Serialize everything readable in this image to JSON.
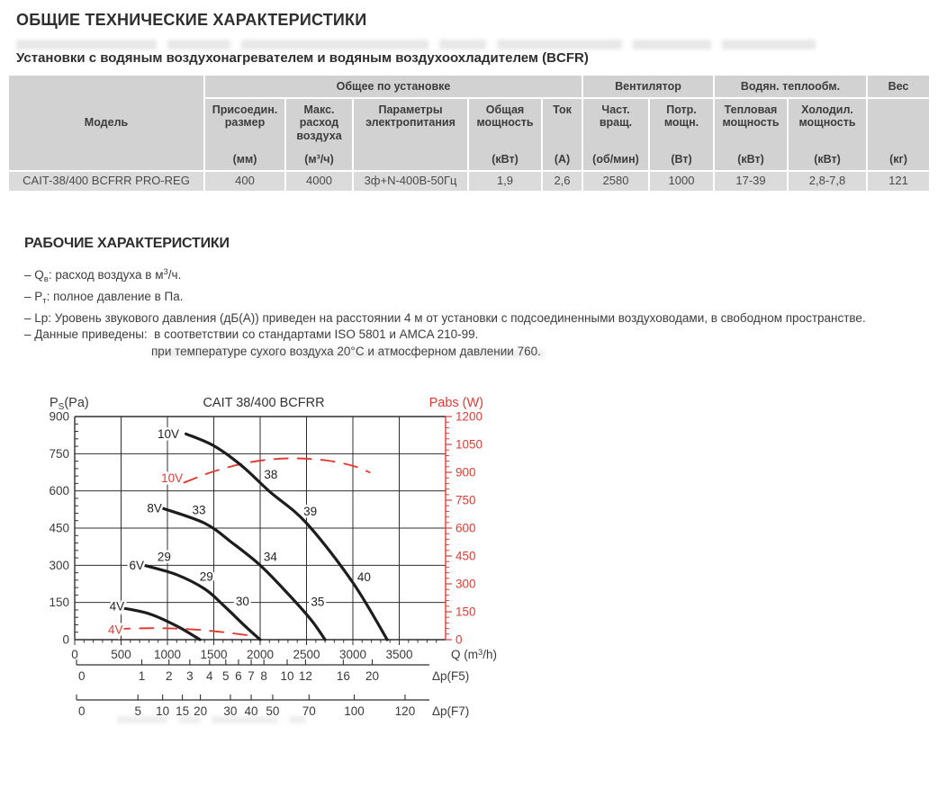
{
  "page": {
    "title": "ОБЩИЕ ТЕХНИЧЕСКИЕ ХАРАКТЕРИСТИКИ",
    "subtitle": "Установки с водяным воздухонагревателем и водяным воздухоохладителем (BCFR)",
    "section2_title": "РАБОЧИЕ ХАРАКТЕРИСТИКИ"
  },
  "table": {
    "model_header": "Модель",
    "groups": [
      {
        "label": "Общее по установке",
        "cols": 5
      },
      {
        "label": "Вентилятор",
        "cols": 2
      },
      {
        "label": "Водян. теплообм.",
        "cols": 2
      }
    ],
    "weight_header": {
      "label": "Вес",
      "unit": "(кг)"
    },
    "columns": [
      {
        "name": "Присоедин. размер",
        "unit": "(мм)"
      },
      {
        "name": "Макс. расход воздуха",
        "unit": "(м³/ч)"
      },
      {
        "name": "Параметры электропитания",
        "unit": ""
      },
      {
        "name": "Общая мощность",
        "unit": "(кВт)"
      },
      {
        "name": "Ток",
        "unit": "(А)"
      },
      {
        "name": "Част. вращ.",
        "unit": "(об/мин)"
      },
      {
        "name": "Потр. мощн.",
        "unit": "(Вт)"
      },
      {
        "name": "Тепловая мощность",
        "unit": "(кВт)"
      },
      {
        "name": "Холодил. мощность",
        "unit": "(кВт)"
      }
    ],
    "row": [
      "CAIT-38/400 BCFRR PRO-REG",
      "400",
      "4000",
      "3ф+N-400В-50Гц",
      "1,9",
      "2,6",
      "2580",
      "1000",
      "17-39",
      "2,8-7,8",
      "121"
    ]
  },
  "notes": {
    "bullets": [
      {
        "segments": [
          {
            "t": "– Q"
          },
          {
            "t": "в",
            "s": "sub"
          },
          {
            "t": ": расход воздуха в м"
          },
          {
            "t": "3",
            "s": "sup"
          },
          {
            "t": "/ч."
          }
        ]
      },
      {
        "segments": [
          {
            "t": "– P"
          },
          {
            "t": "т",
            "s": "sub"
          },
          {
            "t": ": полное давление в Па."
          }
        ]
      },
      {
        "segments": [
          {
            "t": "– Lp: Уровень звукового давления (дБ(А)) приведен на расстоянии 4 м от установки с подсоединенными воздуховодами, в свободном пространстве."
          }
        ]
      },
      {
        "segments": [
          {
            "t": "– Данные приведены:  в соответствии со стандартами ISO 5801 и AMCA 210-99."
          }
        ]
      },
      {
        "segments": [
          {
            "t": "при температуре сухого воздуха 20°C и атмосферном давлении 760."
          }
        ],
        "indent": true
      }
    ]
  },
  "chart_data": {
    "type": "line",
    "title": "CAIT 38/400 BCFRR",
    "left_axis": {
      "label_parts": {
        "pre": "P",
        "sub": "S",
        "post": "(Pa)"
      },
      "min": 0,
      "max": 900,
      "major_step": 150,
      "minor_step": 30
    },
    "right_axis": {
      "label": "Pabs (W)",
      "min": 0,
      "max": 1200,
      "major_step": 150,
      "minor_step": 30
    },
    "x_axis": {
      "label_parts": {
        "pre": "Q (m",
        "sup": "3",
        "post": "/h)"
      },
      "min": 0,
      "max": 4000,
      "major_step": 500,
      "minor_step": 100,
      "labeled_max": 3500
    },
    "grid": true,
    "pressure_curves": [
      {
        "name": "10V",
        "points": [
          [
            1200,
            830
          ],
          [
            1500,
            782
          ],
          [
            1800,
            702
          ],
          [
            2100,
            598
          ],
          [
            2500,
            470
          ],
          [
            3000,
            230
          ],
          [
            3370,
            0
          ]
        ]
      },
      {
        "name": "8V",
        "points": [
          [
            950,
            530
          ],
          [
            1400,
            470
          ],
          [
            1700,
            390
          ],
          [
            2000,
            300
          ],
          [
            2300,
            185
          ],
          [
            2550,
            80
          ],
          [
            2700,
            0
          ]
        ]
      },
      {
        "name": "6V",
        "points": [
          [
            750,
            300
          ],
          [
            1100,
            262
          ],
          [
            1400,
            205
          ],
          [
            1600,
            140
          ],
          [
            1850,
            50
          ],
          [
            2000,
            0
          ]
        ]
      },
      {
        "name": "4V",
        "points": [
          [
            480,
            130
          ],
          [
            800,
            105
          ],
          [
            1100,
            55
          ],
          [
            1350,
            0
          ]
        ]
      }
    ],
    "power_curves": [
      {
        "name": "10V",
        "points": [
          [
            1180,
            845
          ],
          [
            1500,
            905
          ],
          [
            1900,
            955
          ],
          [
            2300,
            975
          ],
          [
            2700,
            965
          ],
          [
            3000,
            935
          ],
          [
            3180,
            900
          ]
        ]
      },
      {
        "name": "4V",
        "points": [
          [
            450,
            58
          ],
          [
            900,
            62
          ],
          [
            1300,
            54
          ],
          [
            1600,
            40
          ],
          [
            1900,
            22
          ]
        ]
      }
    ],
    "curve_labels": [
      {
        "text": "10V",
        "q": 1010,
        "p": 828,
        "color": "black"
      },
      {
        "text": "8V",
        "q": 860,
        "p": 528,
        "color": "black"
      },
      {
        "text": "6V",
        "q": 668,
        "p": 298,
        "color": "black"
      },
      {
        "text": "4V",
        "q": 455,
        "p": 132,
        "color": "black"
      },
      {
        "text": "10V",
        "q": 1050,
        "p": 650,
        "color": "red"
      },
      {
        "text": "4V",
        "q": 440,
        "p": 38,
        "color": "red"
      }
    ],
    "noise_db_labels": [
      {
        "text": "38",
        "q": 2115,
        "p": 665
      },
      {
        "text": "39",
        "q": 2540,
        "p": 515
      },
      {
        "text": "40",
        "q": 3120,
        "p": 250
      },
      {
        "text": "33",
        "q": 1340,
        "p": 520
      },
      {
        "text": "34",
        "q": 2110,
        "p": 332
      },
      {
        "text": "35",
        "q": 2620,
        "p": 150
      },
      {
        "text": "29",
        "q": 965,
        "p": 332
      },
      {
        "text": "29",
        "q": 1420,
        "p": 252
      },
      {
        "text": "30",
        "q": 1810,
        "p": 152
      }
    ],
    "dp_f5": {
      "label": "Δp(F5)",
      "ticks": [
        [
          "0",
          0
        ],
        [
          "1",
          0.185
        ],
        [
          "2",
          0.262
        ],
        [
          "3",
          0.321
        ],
        [
          "4",
          0.377
        ],
        [
          "5",
          0.423
        ],
        [
          "6",
          0.459
        ],
        [
          "7",
          0.495
        ],
        [
          "8",
          0.531
        ],
        [
          "10",
          0.597
        ],
        [
          "12",
          0.649
        ],
        [
          "16",
          0.756
        ],
        [
          "20",
          0.838
        ]
      ]
    },
    "dp_f7": {
      "label": "Δp(F7)",
      "ticks": [
        [
          "0",
          0
        ],
        [
          "5",
          0.174
        ],
        [
          "10",
          0.244
        ],
        [
          "15",
          0.3
        ],
        [
          "20",
          0.351
        ],
        [
          "30",
          0.436
        ],
        [
          "40",
          0.495
        ],
        [
          "50",
          0.556
        ],
        [
          "70",
          0.659
        ],
        [
          "100",
          0.787
        ],
        [
          "120",
          0.931
        ]
      ]
    },
    "colors": {
      "curve_black": "#1d1d1d",
      "accent_red": "#e23b33",
      "grid": "#2f2f2f",
      "text": "#3a3a3a"
    }
  }
}
